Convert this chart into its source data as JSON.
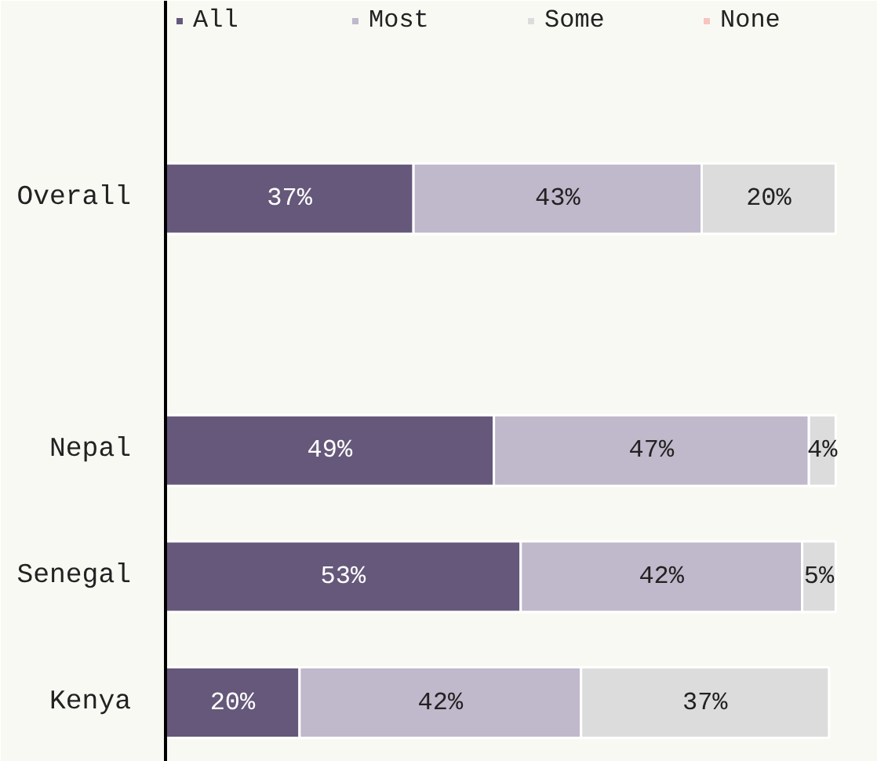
{
  "chart_data": {
    "type": "bar",
    "orientation": "horizontal",
    "stacked": true,
    "legend": "top",
    "grid": false,
    "categories": [
      "Overall",
      null,
      "Nepal",
      "Senegal",
      "Kenya"
    ],
    "series": [
      {
        "name": "All",
        "color": "#65587a",
        "values": [
          37,
          null,
          49,
          53,
          20
        ],
        "value_labels": [
          "37%",
          null,
          "49%",
          "53%",
          "20%"
        ]
      },
      {
        "name": "Most",
        "color": "#c0b8cb",
        "values": [
          43,
          null,
          47,
          42,
          42
        ],
        "value_labels": [
          "43%",
          null,
          "47%",
          "42%",
          "42%"
        ]
      },
      {
        "name": "Some",
        "color": "#dcdcdc",
        "values": [
          20,
          null,
          4,
          5,
          37
        ],
        "value_labels": [
          "20%",
          null,
          "4%",
          "5%",
          "37%"
        ]
      },
      {
        "name": "None",
        "color": "#f8c4c0",
        "values": [
          null,
          null,
          null,
          null,
          null
        ]
      }
    ]
  }
}
